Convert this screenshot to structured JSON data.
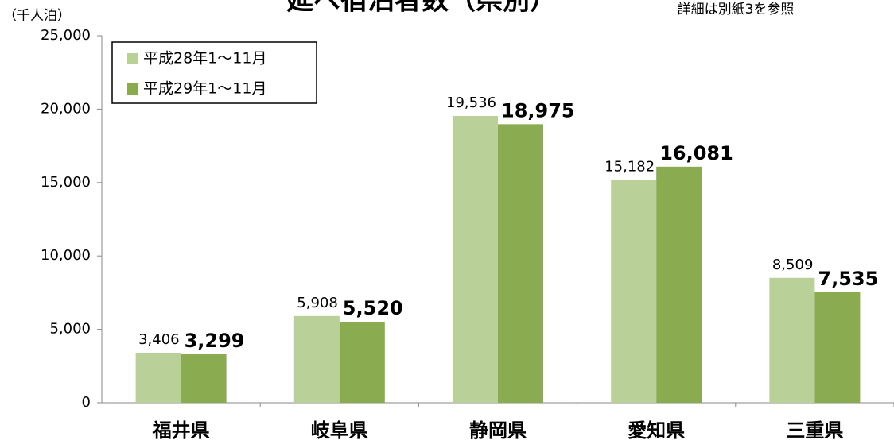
{
  "chart_data": {
    "type": "bar",
    "title": "延べ宿泊者数（県別）",
    "note": "詳細は別紙3を参照",
    "y_label": "（千人泊）",
    "categories": [
      "福井県",
      "岐阜県",
      "静岡県",
      "愛知県",
      "三重県"
    ],
    "series": [
      {
        "name": "平成28年1～11月",
        "color": "#b9d098",
        "values": [
          3406,
          5908,
          19536,
          15182,
          8509
        ],
        "value_labels": [
          "3,406",
          "5,908",
          "19,536",
          "15,182",
          "8,509"
        ]
      },
      {
        "name": "平成29年1～11月",
        "color": "#8aab50",
        "values": [
          3299,
          5520,
          18975,
          16081,
          7535
        ],
        "value_labels": [
          "3,299",
          "5,520",
          "18,975",
          "16,081",
          "7,535"
        ]
      }
    ],
    "ylim": [
      0,
      25000
    ],
    "yticks": [
      0,
      {
        "value": 5000,
        "label": "5,000"
      },
      {
        "value": 10000,
        "label": "10,000"
      },
      {
        "value": 15000,
        "label": "15,000"
      },
      {
        "value": 20000,
        "label": "20,000"
      },
      {
        "value": 25000,
        "label": "25,000"
      }
    ],
    "legend": "top-left"
  }
}
